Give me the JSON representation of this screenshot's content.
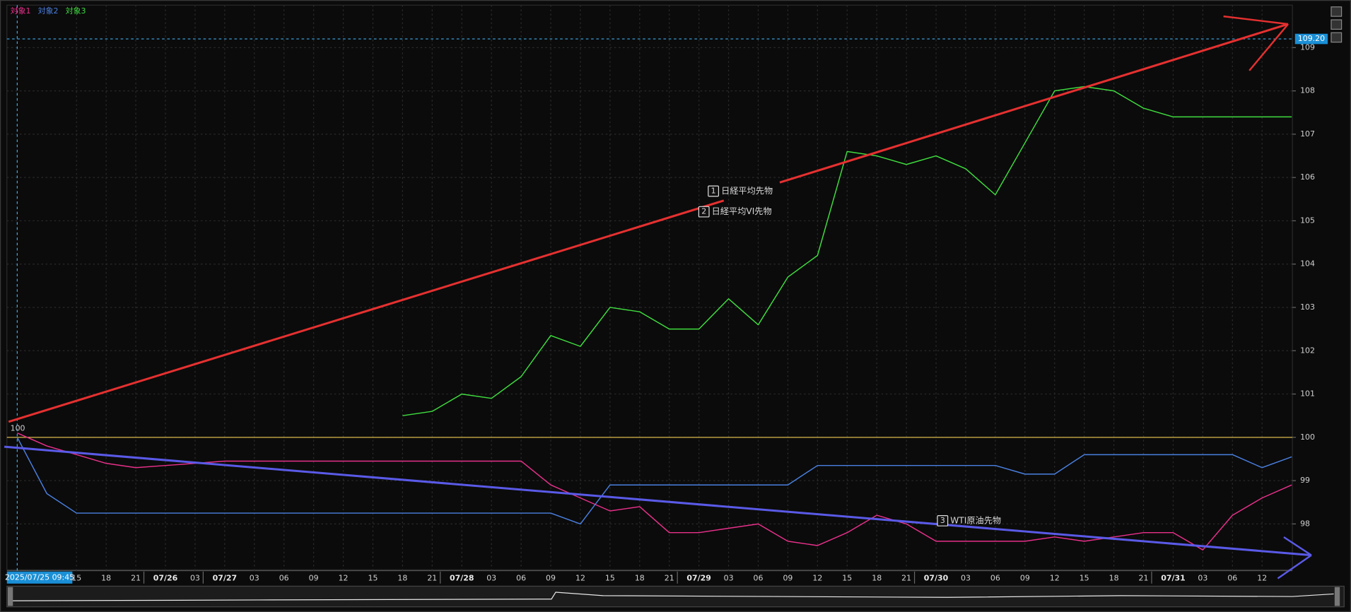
{
  "chart_data": {
    "type": "line",
    "categories": [
      null,
      null,
      "15",
      "18",
      "21",
      "07/26",
      "03",
      "07/27",
      "03",
      "06",
      "09",
      "12",
      "15",
      "18",
      "21",
      "07/28",
      "03",
      "06",
      "09",
      "12",
      "15",
      "18",
      "21",
      "07/29",
      "03",
      "06",
      "09",
      "12",
      "15",
      "18",
      "21",
      "07/30",
      "03",
      "06",
      "09",
      "12",
      "15",
      "18",
      "21",
      "07/31",
      "03",
      "06",
      "12",
      null
    ],
    "series": [
      {
        "name": "対象1",
        "color": "#e8308a",
        "values": [
          100.1,
          99.8,
          99.6,
          99.4,
          99.3,
          99.35,
          99.4,
          99.45,
          99.45,
          99.45,
          99.45,
          99.45,
          99.45,
          99.45,
          99.45,
          99.45,
          99.45,
          99.45,
          98.9,
          98.6,
          98.3,
          98.4,
          97.8,
          97.8,
          97.9,
          98.0,
          97.6,
          97.5,
          97.8,
          98.2,
          98.0,
          97.6,
          97.6,
          97.6,
          97.6,
          97.7,
          97.6,
          97.7,
          97.8,
          97.8,
          97.4,
          98.2,
          98.6,
          98.9
        ]
      },
      {
        "name": "対象2",
        "color": "#4a7fe0",
        "values": [
          100.0,
          98.7,
          98.25,
          98.25,
          98.25,
          98.25,
          98.25,
          98.25,
          98.25,
          98.25,
          98.25,
          98.25,
          98.25,
          98.25,
          98.25,
          98.25,
          98.25,
          98.25,
          98.25,
          98.0,
          98.9,
          98.9,
          98.9,
          98.9,
          98.9,
          98.9,
          98.9,
          99.35,
          99.35,
          99.35,
          99.35,
          99.35,
          99.35,
          99.35,
          99.15,
          99.15,
          99.6,
          99.6,
          99.6,
          99.6,
          99.6,
          99.6,
          99.3,
          99.55
        ]
      },
      {
        "name": "対象3",
        "color": "#3fdc3f",
        "values": [
          null,
          null,
          null,
          null,
          null,
          null,
          null,
          null,
          null,
          null,
          null,
          null,
          null,
          100.5,
          100.6,
          101.0,
          100.9,
          101.4,
          102.35,
          102.1,
          103.0,
          102.9,
          102.5,
          102.5,
          103.2,
          102.6,
          103.7,
          104.2,
          106.6,
          106.5,
          106.3,
          106.5,
          106.2,
          105.6,
          106.8,
          108.0,
          108.1,
          108.0,
          107.6,
          107.4,
          107.4,
          107.4,
          107.4,
          107.4
        ]
      }
    ],
    "ylim": [
      97,
      109.9
    ],
    "yticks": [
      98,
      99,
      100,
      101,
      102,
      103,
      104,
      105,
      106,
      107,
      108,
      109
    ],
    "grid": true,
    "baseline": {
      "value": 100,
      "label": "100",
      "color": "#d9b84a"
    },
    "crosshair": {
      "value": 109.2,
      "label": "109.20",
      "time": "2025/07/25 09:45"
    },
    "annotations": [
      {
        "number": "1",
        "text": "日経平均先物"
      },
      {
        "number": "2",
        "text": "日経平均VI先物"
      },
      {
        "number": "3",
        "text": "WTI原油先物"
      }
    ]
  }
}
